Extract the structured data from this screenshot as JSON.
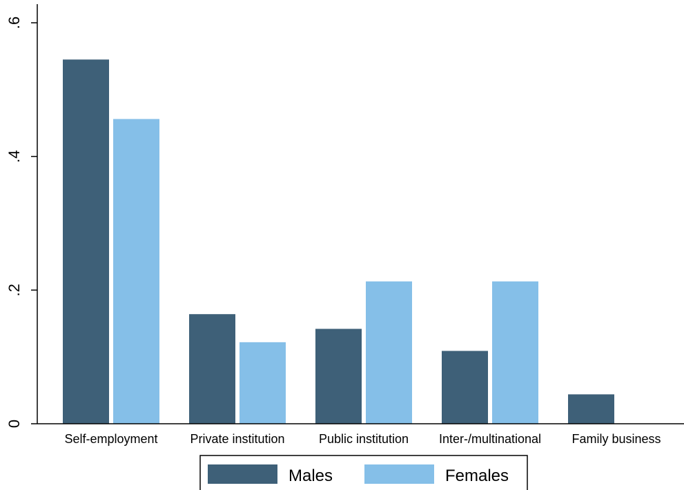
{
  "chart_data": {
    "type": "bar",
    "categories": [
      "Self-employment",
      "Private institution",
      "Public institution",
      "Inter-/multinational",
      "Family business"
    ],
    "series": [
      {
        "name": "Males",
        "values": [
          0.545,
          0.164,
          0.142,
          0.109,
          0.044
        ],
        "color": "#3e6078"
      },
      {
        "name": "Females",
        "values": [
          0.456,
          0.122,
          0.213,
          0.213,
          0.0
        ],
        "color": "#85bfe8"
      }
    ],
    "title": "",
    "xlabel": "",
    "ylabel": "",
    "ylim": [
      0,
      0.6
    ],
    "yticks": [
      0,
      0.2,
      0.4,
      0.6
    ],
    "ytick_labels": [
      "0",
      ".2",
      ".4",
      ".6"
    ],
    "grid": false,
    "legend_position": "bottom"
  }
}
